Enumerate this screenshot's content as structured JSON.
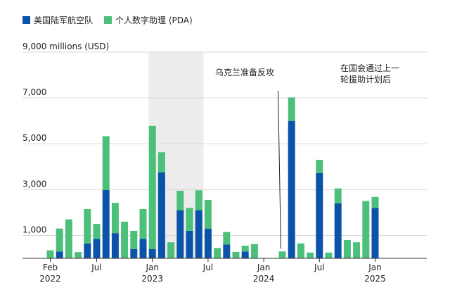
{
  "legend": {
    "series_a": "美国陆军航空队",
    "series_b": "个人数字助理 (PDA)"
  },
  "chart_data": {
    "type": "bar",
    "stacked": true,
    "y_unit_label": "9,000 millions (USD)",
    "ylim": [
      0,
      9000
    ],
    "y_ticks": [
      {
        "value": 9000,
        "label": "9,000 millions (USD)"
      },
      {
        "value": 7000,
        "label": "7,000"
      },
      {
        "value": 5000,
        "label": "5,000"
      },
      {
        "value": 3000,
        "label": "3,000"
      },
      {
        "value": 1000,
        "label": "1,000"
      }
    ],
    "grid": true,
    "legend_position": "top-left",
    "colors": {
      "series_a": "#0b53a8",
      "series_b": "#4cc07a",
      "shade": "#ececec",
      "grid": "#d9d9d9"
    },
    "x_ticks": [
      {
        "index": 1,
        "line1": "Feb",
        "line2": "2022"
      },
      {
        "index": 6,
        "line1": "Jul",
        "line2": ""
      },
      {
        "index": 12,
        "line1": "Jan",
        "line2": "2023"
      },
      {
        "index": 18,
        "line1": "Jul",
        "line2": ""
      },
      {
        "index": 24,
        "line1": "Jan",
        "line2": "2024"
      },
      {
        "index": 30,
        "line1": "Jul",
        "line2": ""
      },
      {
        "index": 36,
        "line1": "Jan",
        "line2": "2025"
      }
    ],
    "months": [
      "2022-01",
      "2022-02",
      "2022-03",
      "2022-04",
      "2022-05",
      "2022-06",
      "2022-07",
      "2022-08",
      "2022-09",
      "2022-10",
      "2022-11",
      "2022-12",
      "2023-01",
      "2023-02",
      "2023-03",
      "2023-04",
      "2023-05",
      "2023-06",
      "2023-07",
      "2023-08",
      "2023-09",
      "2023-10",
      "2023-11",
      "2023-12",
      "2024-01",
      "2024-02",
      "2024-03",
      "2024-04",
      "2024-05",
      "2024-06",
      "2024-07",
      "2024-08",
      "2024-09",
      "2024-10",
      "2024-11",
      "2024-12",
      "2025-01"
    ],
    "series": [
      {
        "key": "series_a",
        "values": [
          0,
          300,
          0,
          0,
          650,
          850,
          2980,
          1100,
          0,
          400,
          850,
          400,
          3750,
          0,
          2100,
          1200,
          2100,
          1300,
          0,
          600,
          0,
          300,
          0,
          0,
          0,
          0,
          6000,
          0,
          0,
          3720,
          0,
          2400,
          0,
          0,
          0,
          2200,
          0
        ]
      },
      {
        "key": "series_b",
        "values": [
          350,
          1000,
          1700,
          270,
          1500,
          650,
          2350,
          1320,
          1600,
          800,
          1300,
          5380,
          880,
          700,
          850,
          1000,
          870,
          1250,
          450,
          550,
          280,
          250,
          620,
          0,
          0,
          300,
          1020,
          650,
          250,
          580,
          250,
          650,
          800,
          700,
          2500,
          480,
          0
        ]
      }
    ],
    "shade_band": {
      "from_index": 11.6,
      "to_index": 17.5,
      "label": "乌克兰准备反攻"
    },
    "annotation": {
      "index": 26,
      "line1": "在国会通过上一",
      "line2": "轮援助计划后"
    }
  }
}
